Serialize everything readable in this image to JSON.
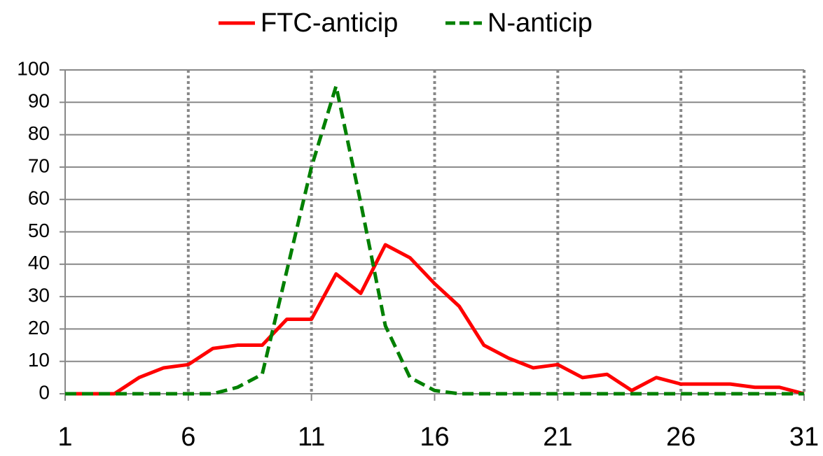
{
  "chart_data": {
    "type": "line",
    "x": [
      1,
      2,
      3,
      4,
      5,
      6,
      7,
      8,
      9,
      10,
      11,
      12,
      13,
      14,
      15,
      16,
      17,
      18,
      19,
      20,
      21,
      22,
      23,
      24,
      25,
      26,
      27,
      28,
      29,
      30,
      31
    ],
    "series": [
      {
        "name": "FTC-anticip",
        "color": "#ff0000",
        "dash": false,
        "values": [
          0,
          0,
          0,
          5,
          8,
          9,
          14,
          15,
          15,
          23,
          23,
          37,
          31,
          46,
          42,
          34,
          27,
          15,
          11,
          8,
          9,
          5,
          6,
          1,
          5,
          3,
          3,
          3,
          2,
          2,
          0
        ]
      },
      {
        "name": "N-anticip",
        "color": "#008000",
        "dash": true,
        "values": [
          0,
          0,
          0,
          0,
          0,
          0,
          0,
          2,
          6,
          38,
          70,
          95,
          59,
          21,
          5,
          1,
          0,
          0,
          0,
          0,
          0,
          0,
          0,
          0,
          0,
          0,
          0,
          0,
          0,
          0,
          0
        ]
      }
    ],
    "xlim": [
      1,
      31
    ],
    "xticks": [
      1,
      6,
      11,
      16,
      21,
      26,
      31
    ],
    "ylim": [
      0,
      100
    ],
    "yticks": [
      0,
      10,
      20,
      30,
      40,
      50,
      60,
      70,
      80,
      90,
      100
    ],
    "grid": true,
    "legend": "top"
  }
}
